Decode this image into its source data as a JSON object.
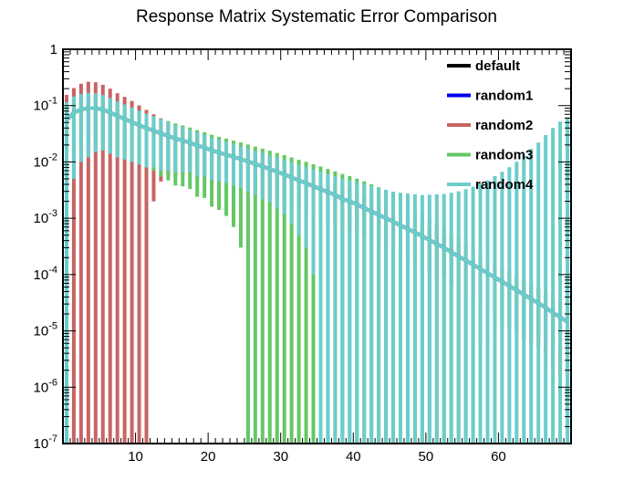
{
  "chart_data": {
    "type": "line",
    "title": "Response Matrix Systematic Error Comparison",
    "xlabel": "",
    "ylabel": "",
    "xlim": [
      0,
      70
    ],
    "ylim": [
      1e-07,
      1
    ],
    "yscale": "log",
    "x_ticks": [
      10,
      20,
      30,
      40,
      50,
      60
    ],
    "y_ticks": [
      {
        "value": 1e-07,
        "base": "10",
        "exp": "-7"
      },
      {
        "value": 1e-06,
        "base": "10",
        "exp": "-6"
      },
      {
        "value": 1e-05,
        "base": "10",
        "exp": "-5"
      },
      {
        "value": 0.0001,
        "base": "10",
        "exp": "-4"
      },
      {
        "value": 0.001,
        "base": "10",
        "exp": "-3"
      },
      {
        "value": 0.01,
        "base": "10",
        "exp": "-2"
      },
      {
        "value": 0.1,
        "base": "10",
        "exp": "-1"
      },
      {
        "value": 1,
        "base": "1",
        "exp": ""
      }
    ],
    "grid": false,
    "legend_position": "top-right",
    "x": [
      0.5,
      1.5,
      2.5,
      3.5,
      4.5,
      5.5,
      6.5,
      7.5,
      8.5,
      9.5,
      10.5,
      11.5,
      12.5,
      13.5,
      14.5,
      15.5,
      16.5,
      17.5,
      18.5,
      19.5,
      20.5,
      21.5,
      22.5,
      23.5,
      24.5,
      25.5,
      26.5,
      27.5,
      28.5,
      29.5,
      30.5,
      31.5,
      32.5,
      33.5,
      34.5,
      35.5,
      36.5,
      37.5,
      38.5,
      39.5,
      40.5,
      41.5,
      42.5,
      43.5,
      44.5,
      45.5,
      46.5,
      47.5,
      48.5,
      49.5,
      50.5,
      51.5,
      52.5,
      53.5,
      54.5,
      55.5,
      56.5,
      57.5,
      58.5,
      59.5,
      60.5,
      61.5,
      62.5,
      63.5,
      64.5,
      65.5,
      66.5,
      67.5,
      68.5,
      69.5
    ],
    "series": [
      {
        "name": "default",
        "color": "#000000",
        "values": [
          0.055,
          0.075,
          0.085,
          0.09,
          0.09,
          0.085,
          0.075,
          0.066,
          0.058,
          0.051,
          0.045,
          0.04,
          0.036,
          0.032,
          0.029,
          0.026,
          0.024,
          0.022,
          0.0195,
          0.018,
          0.016,
          0.0147,
          0.0135,
          0.0123,
          0.0112,
          0.0102,
          0.0092,
          0.0083,
          0.0075,
          0.0067,
          0.006,
          0.0053,
          0.0047,
          0.0042,
          0.0037,
          0.0033,
          0.0029,
          0.0026,
          0.0022,
          0.002,
          0.00175,
          0.00152,
          0.00132,
          0.00115,
          0.001,
          0.00087,
          0.00075,
          0.00065,
          0.00056,
          0.00048,
          0.00041,
          0.00035,
          0.0003,
          0.00025,
          0.00021,
          0.000178,
          0.00015,
          0.000126,
          0.000106,
          8.9e-05,
          7.5e-05,
          6.3e-05,
          5.3e-05,
          4.4e-05,
          3.7e-05,
          3.1e-05,
          2.6e-05,
          2.1e-05,
          1.75e-05,
          1.45e-05
        ],
        "errors": []
      },
      {
        "name": "random1",
        "color": "#0000ee",
        "values": [
          0.055,
          0.075,
          0.085,
          0.09,
          0.09,
          0.085,
          0.075,
          0.066,
          0.058,
          0.051,
          0.045,
          0.04,
          0.036,
          0.032,
          0.029,
          0.026,
          0.024,
          0.022,
          0.0195,
          0.018,
          0.016,
          0.0147,
          0.0135,
          0.0123,
          0.0112,
          0.0102,
          0.0092,
          0.0083,
          0.0075,
          0.0067,
          0.006,
          0.0053,
          0.0047,
          0.0042,
          0.0037,
          0.0033,
          0.0029,
          0.0026,
          0.0022,
          0.002,
          0.00175,
          0.00152,
          0.00132,
          0.00115,
          0.001,
          0.00087,
          0.00075,
          0.00065,
          0.00056,
          0.00048,
          0.00041,
          0.00035,
          0.0003,
          0.00025,
          0.00021,
          0.000178,
          0.00015,
          0.000126,
          0.000106,
          8.9e-05,
          7.5e-05,
          6.3e-05,
          5.3e-05,
          4.4e-05,
          3.7e-05,
          3.1e-05,
          2.6e-05,
          2.1e-05,
          1.75e-05,
          1.45e-05
        ],
        "errors": []
      },
      {
        "name": "random2",
        "color": "#c86464",
        "values": [
          0.055,
          0.075,
          0.085,
          0.09,
          0.09,
          0.085,
          0.075,
          0.066,
          0.058,
          0.051,
          0.045,
          0.04,
          0.036,
          0.032,
          0.029,
          0.026,
          0.024,
          0.022,
          0.0195,
          0.018,
          0.016,
          0.0147,
          0.0135,
          0.0123,
          0.0112,
          0.0102,
          0.0092,
          0.0083,
          0.0075,
          0.0067,
          0.006,
          0.0053,
          0.0047,
          0.0042,
          0.0037,
          0.0033,
          0.0029,
          0.0026,
          0.0022,
          0.002,
          0.00175,
          0.00152,
          0.00132,
          0.00115,
          0.001,
          0.00087,
          0.00075,
          0.00065,
          0.00056,
          0.00048,
          0.00041,
          0.00035,
          0.0003,
          0.00025,
          0.00021,
          0.000178,
          0.00015,
          0.000126,
          0.000106,
          8.9e-05,
          7.5e-05,
          6.3e-05,
          5.3e-05,
          4.4e-05,
          3.7e-05,
          3.1e-05,
          2.6e-05,
          2.1e-05,
          1.75e-05,
          1.45e-05
        ],
        "errors": [
          0.1,
          0.13,
          0.16,
          0.175,
          0.17,
          0.15,
          0.125,
          0.1,
          0.085,
          0.07,
          0.056,
          0.044,
          0.034,
          0.0275,
          0.0235,
          0.0205,
          0.018,
          0.016,
          0.0145,
          0.013,
          0.012,
          0.0108,
          0.0098,
          0.0088,
          0.008,
          0.0072,
          0.0065,
          0.006,
          0.0052,
          0.0047,
          0.0042,
          0.0037,
          0.0033,
          0.0029,
          0.0026,
          0.0023,
          0.002,
          0.0018,
          0.0016,
          0.0014,
          0.0012,
          0.00105,
          0.00092,
          0.0008,
          0.0007,
          0.0006,
          0.00052,
          0.00045,
          0.00039,
          0.00034,
          0.00029,
          0.00025,
          0.00021,
          0.00018,
          0.000155,
          0.000133,
          0.000114,
          9.8e-05,
          8.4e-05,
          7.2e-05,
          6.1e-05,
          5.2e-05,
          4.4e-05,
          3.7e-05,
          3.1e-05,
          2.6e-05,
          2.2e-05,
          1.9e-05,
          1.6e-05,
          1.3e-05
        ]
      },
      {
        "name": "random3",
        "color": "#64c864",
        "values": [
          0.055,
          0.075,
          0.085,
          0.09,
          0.09,
          0.085,
          0.075,
          0.066,
          0.058,
          0.051,
          0.045,
          0.04,
          0.036,
          0.032,
          0.029,
          0.026,
          0.024,
          0.022,
          0.0195,
          0.018,
          0.016,
          0.0147,
          0.0135,
          0.0123,
          0.0112,
          0.0102,
          0.0092,
          0.0083,
          0.0075,
          0.0067,
          0.006,
          0.0053,
          0.0047,
          0.0042,
          0.0037,
          0.0033,
          0.0029,
          0.0026,
          0.0022,
          0.002,
          0.00175,
          0.00152,
          0.00132,
          0.00115,
          0.001,
          0.00087,
          0.00075,
          0.00065,
          0.00056,
          0.00048,
          0.00041,
          0.00035,
          0.0003,
          0.00025,
          0.00021,
          0.000178,
          0.00015,
          0.000126,
          0.000106,
          8.9e-05,
          7.5e-05,
          6.3e-05,
          5.3e-05,
          4.4e-05,
          3.7e-05,
          3.1e-05,
          2.6e-05,
          2.1e-05,
          1.75e-05,
          1.45e-05
        ],
        "errors": [
          0.05,
          0.06,
          0.068,
          0.07,
          0.068,
          0.064,
          0.058,
          0.052,
          0.046,
          0.041,
          0.036,
          0.032,
          0.029,
          0.0265,
          0.0243,
          0.0222,
          0.0203,
          0.0187,
          0.0171,
          0.0157,
          0.0144,
          0.0133,
          0.0124,
          0.0116,
          0.0109,
          0.0102,
          0.0095,
          0.0089,
          0.0083,
          0.0077,
          0.0072,
          0.0067,
          0.0062,
          0.0058,
          0.0054,
          0.005,
          0.0046,
          0.0042,
          0.0039,
          0.0036,
          0.0033,
          0.003,
          0.0027,
          0.0024,
          0.0021,
          0.0018,
          0.0015,
          0.0012,
          0.001,
          0.0008,
          0.0006,
          0.00048,
          0.00038,
          0.0003,
          0.00024,
          0.00019,
          0.00015,
          0.00012,
          0.0001,
          8e-05,
          6.4e-05,
          5.2e-05,
          4.2e-05,
          3.4e-05,
          2.8e-05,
          2.3e-05,
          1.9e-05,
          1.6e-05,
          1.3e-05,
          1.1e-05
        ]
      },
      {
        "name": "random4",
        "color": "#6ccccc",
        "values": [
          0.055,
          0.075,
          0.085,
          0.09,
          0.09,
          0.085,
          0.075,
          0.066,
          0.058,
          0.051,
          0.045,
          0.04,
          0.036,
          0.032,
          0.029,
          0.026,
          0.024,
          0.022,
          0.0195,
          0.018,
          0.016,
          0.0147,
          0.0135,
          0.0123,
          0.0112,
          0.0102,
          0.0092,
          0.0083,
          0.0075,
          0.0067,
          0.006,
          0.0053,
          0.0047,
          0.0042,
          0.0037,
          0.0033,
          0.0029,
          0.0026,
          0.0022,
          0.002,
          0.00175,
          0.00152,
          0.00132,
          0.00115,
          0.001,
          0.00087,
          0.00075,
          0.00065,
          0.00056,
          0.00048,
          0.00041,
          0.00035,
          0.0003,
          0.00025,
          0.00021,
          0.000178,
          0.00015,
          0.000126,
          0.000106,
          8.9e-05,
          7.5e-05,
          6.3e-05,
          5.3e-05,
          4.4e-05,
          3.7e-05,
          3.1e-05,
          2.6e-05,
          2.1e-05,
          1.75e-05,
          1.45e-05
        ],
        "errors": [
          0.06,
          0.07,
          0.075,
          0.078,
          0.075,
          0.069,
          0.061,
          0.054,
          0.047,
          0.041,
          0.036,
          0.032,
          0.028,
          0.025,
          0.022,
          0.0195,
          0.0175,
          0.0155,
          0.014,
          0.0125,
          0.0112,
          0.0102,
          0.0093,
          0.0085,
          0.0078,
          0.0072,
          0.0066,
          0.0061,
          0.0056,
          0.0052,
          0.0048,
          0.0045,
          0.0042,
          0.0039,
          0.0036,
          0.0034,
          0.0032,
          0.003,
          0.0028,
          0.0027,
          0.0026,
          0.0025,
          0.0024,
          0.0023,
          0.0022,
          0.0021,
          0.0021,
          0.0021,
          0.0021,
          0.0021,
          0.0022,
          0.0023,
          0.0024,
          0.0026,
          0.0028,
          0.0031,
          0.0035,
          0.004,
          0.0046,
          0.0055,
          0.0066,
          0.008,
          0.01,
          0.013,
          0.017,
          0.022,
          0.03,
          0.04,
          0.052,
          0.062
        ]
      }
    ]
  }
}
